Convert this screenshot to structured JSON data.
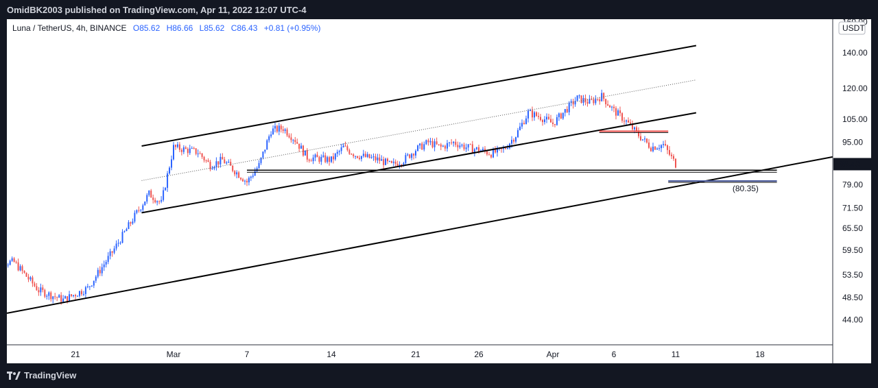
{
  "header": {
    "publisher_line": "OmidBK2003 published on TradingView.com, Apr 11, 2022 12:07 UTC-4"
  },
  "legend": {
    "symbol": "Luna / TetherUS, 4h, BINANCE",
    "open": "O85.62",
    "high": "H86.66",
    "low": "L85.62",
    "close": "C86.43",
    "change": "+0.81 (+0.95%)"
  },
  "footer": {
    "brand": "TradingView",
    "logo_icon": "tradingview-logo-icon"
  },
  "colors": {
    "background": "#ffffff",
    "frame": "#131722",
    "up": "#2962ff",
    "down": "#ef5350",
    "line": "#000000",
    "price_label_bg": "#131722"
  },
  "chart_data": {
    "type": "candlestick",
    "symbol": "Luna / TetherUS",
    "interval": "4h",
    "exchange": "BINANCE",
    "currency_label": "USDT",
    "y_scale": "log",
    "ylim": [
      39.5,
      162
    ],
    "y_ticks": [
      "160.00",
      "140.00",
      "120.00",
      "105.00",
      "95.00",
      "86.43",
      "79.00",
      "71.50",
      "65.50",
      "59.50",
      "53.50",
      "48.50",
      "44.00"
    ],
    "x_ticks": [
      "21",
      "Mar",
      "7",
      "14",
      "21",
      "26",
      "Apr",
      "6",
      "11",
      "18"
    ],
    "last_price": 86.43,
    "price_series_close": [
      {
        "date": "Feb 16",
        "close": 56.5
      },
      {
        "date": "Feb 18",
        "close": 50.0
      },
      {
        "date": "Feb 20",
        "close": 48.0
      },
      {
        "date": "Feb 22",
        "close": 50.5
      },
      {
        "date": "Feb 24",
        "close": 59.0
      },
      {
        "date": "Feb 26",
        "close": 70.0
      },
      {
        "date": "Feb 27",
        "close": 76.0
      },
      {
        "date": "Feb 28",
        "close": 73.0
      },
      {
        "date": "Mar 1",
        "close": 93.0
      },
      {
        "date": "Mar 2",
        "close": 92.0
      },
      {
        "date": "Mar 3",
        "close": 91.0
      },
      {
        "date": "Mar 4",
        "close": 86.0
      },
      {
        "date": "Mar 5",
        "close": 88.0
      },
      {
        "date": "Mar 6",
        "close": 84.0
      },
      {
        "date": "Mar 7",
        "close": 80.0
      },
      {
        "date": "Mar 8",
        "close": 86.0
      },
      {
        "date": "Mar 9",
        "close": 100.0
      },
      {
        "date": "Mar 10",
        "close": 101.0
      },
      {
        "date": "Mar 11",
        "close": 96.0
      },
      {
        "date": "Mar 12",
        "close": 89.0
      },
      {
        "date": "Mar 14",
        "close": 88.0
      },
      {
        "date": "Mar 15",
        "close": 93.0
      },
      {
        "date": "Mar 16",
        "close": 90.0
      },
      {
        "date": "Mar 18",
        "close": 88.0
      },
      {
        "date": "Mar 19",
        "close": 86.0
      },
      {
        "date": "Mar 20",
        "close": 88.0
      },
      {
        "date": "Mar 21",
        "close": 92.0
      },
      {
        "date": "Mar 22",
        "close": 95.0
      },
      {
        "date": "Mar 23",
        "close": 93.0
      },
      {
        "date": "Mar 24",
        "close": 95.0
      },
      {
        "date": "Mar 25",
        "close": 93.0
      },
      {
        "date": "Mar 26",
        "close": 92.0
      },
      {
        "date": "Mar 27",
        "close": 90.5
      },
      {
        "date": "Mar 28",
        "close": 92.0
      },
      {
        "date": "Mar 29",
        "close": 98.0
      },
      {
        "date": "Mar 30",
        "close": 108.0
      },
      {
        "date": "Mar 31",
        "close": 106.0
      },
      {
        "date": "Apr 1",
        "close": 103.0
      },
      {
        "date": "Apr 2",
        "close": 109.0
      },
      {
        "date": "Apr 3",
        "close": 115.0
      },
      {
        "date": "Apr 4",
        "close": 113.0
      },
      {
        "date": "Apr 5",
        "close": 116.0
      },
      {
        "date": "Apr 6",
        "close": 109.0
      },
      {
        "date": "Apr 7",
        "close": 104.0
      },
      {
        "date": "Apr 8",
        "close": 98.0
      },
      {
        "date": "Apr 9",
        "close": 93.0
      },
      {
        "date": "Apr 10",
        "close": 94.0
      },
      {
        "date": "Apr 11",
        "close": 86.43
      }
    ],
    "annotations": [
      {
        "type": "horizontal_level",
        "label": "(80.35)",
        "value": 80.35
      }
    ]
  }
}
